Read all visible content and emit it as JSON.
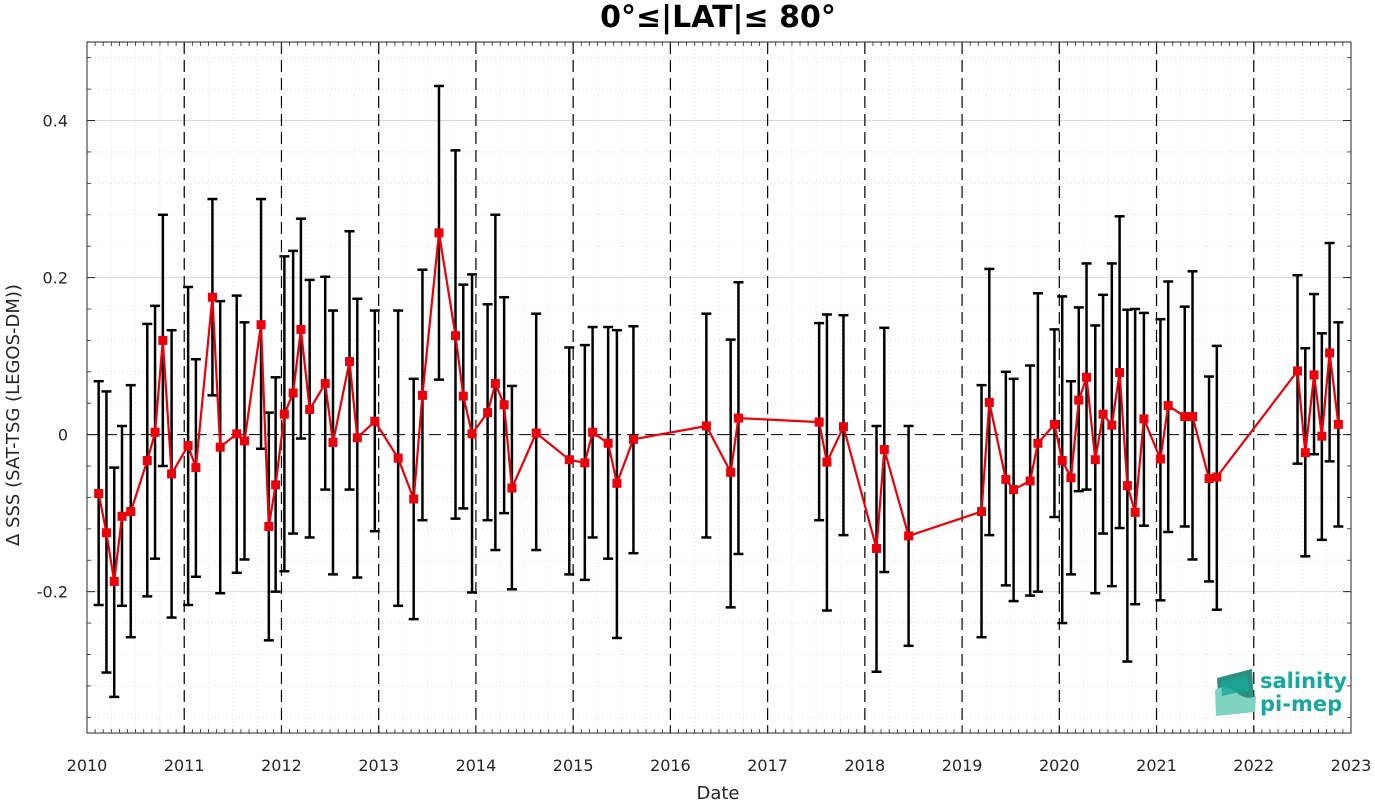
{
  "chart_data": {
    "type": "line",
    "title": "0°≤|LAT|≤ 80°",
    "xlabel": "Date",
    "ylabel": "Δ SSS (SAT-TSG (LEGOS-DM))",
    "xlim": [
      2010,
      2023
    ],
    "ylim": [
      -0.38,
      0.5
    ],
    "xticks": [
      "2010",
      "2011",
      "2012",
      "2013",
      "2014",
      "2015",
      "2016",
      "2017",
      "2018",
      "2019",
      "2020",
      "2021",
      "2022",
      "2023"
    ],
    "yticks": [
      "-0.2",
      "0",
      "0.2",
      "0.4"
    ],
    "grid": true,
    "year_boundaries": "dashed vertical lines",
    "zero_line": "dashed horizontal line",
    "colors": {
      "line": "#e8000b",
      "error_bars": "#000000",
      "grid": "#d9d9d9"
    },
    "series": [
      {
        "x": [
          2010.12,
          2010.2,
          2010.28,
          2010.36,
          2010.45,
          2010.62,
          2010.7,
          2010.78,
          2010.87,
          2011.04,
          2011.12,
          2011.29,
          2011.37,
          2011.54,
          2011.62,
          2011.79,
          2011.87,
          2011.94,
          2012.03,
          2012.12,
          2012.2,
          2012.29,
          2012.45,
          2012.53,
          2012.7,
          2012.78,
          2012.96,
          2013.2,
          2013.36,
          2013.45,
          2013.62,
          2013.79,
          2013.87,
          2013.96,
          2014.12,
          2014.2,
          2014.29,
          2014.37,
          2014.62,
          2014.96,
          2015.12,
          2015.2,
          2015.36,
          2015.45,
          2015.62,
          2016.37,
          2016.62,
          2016.7,
          2017.53,
          2017.61,
          2017.78,
          2018.12,
          2018.2,
          2018.45,
          2019.2,
          2019.28,
          2019.45,
          2019.53,
          2019.7,
          2019.78,
          2019.95,
          2020.03,
          2020.12,
          2020.2,
          2020.28,
          2020.37,
          2020.45,
          2020.54,
          2020.62,
          2020.7,
          2020.78,
          2020.87,
          2021.04,
          2021.12,
          2021.29,
          2021.37,
          2021.54,
          2021.62,
          2022.45,
          2022.53,
          2022.62,
          2022.7,
          2022.78,
          2022.87
        ],
        "y": [
          -0.075,
          -0.125,
          -0.187,
          -0.104,
          -0.098,
          -0.033,
          0.003,
          0.12,
          -0.05,
          -0.014,
          -0.042,
          0.175,
          -0.016,
          0.001,
          -0.008,
          0.14,
          -0.117,
          -0.064,
          0.026,
          0.053,
          0.134,
          0.032,
          0.065,
          -0.01,
          0.093,
          -0.004,
          0.017,
          -0.03,
          -0.082,
          0.05,
          0.257,
          0.126,
          0.049,
          0.001,
          0.028,
          0.065,
          0.038,
          -0.068,
          0.002,
          -0.032,
          -0.036,
          0.003,
          -0.011,
          -0.062,
          -0.006,
          0.011,
          -0.048,
          0.021,
          0.016,
          -0.035,
          0.01,
          -0.145,
          -0.019,
          -0.129,
          -0.098,
          0.041,
          -0.057,
          -0.07,
          -0.059,
          -0.011,
          0.013,
          -0.033,
          -0.055,
          0.044,
          0.073,
          -0.032,
          0.026,
          0.012,
          0.079,
          -0.065,
          -0.099,
          0.02,
          -0.031,
          0.037,
          0.023,
          0.023,
          -0.056,
          -0.054,
          0.081,
          -0.023,
          0.076,
          -0.002,
          0.104,
          0.013
        ],
        "y_low": [
          -0.217,
          -0.303,
          -0.334,
          -0.218,
          -0.258,
          -0.206,
          -0.158,
          -0.04,
          -0.233,
          -0.217,
          -0.181,
          0.05,
          -0.202,
          -0.176,
          -0.159,
          -0.018,
          -0.262,
          -0.2,
          -0.174,
          -0.126,
          -0.005,
          -0.131,
          -0.07,
          -0.178,
          -0.07,
          -0.182,
          -0.123,
          -0.218,
          -0.235,
          -0.109,
          0.07,
          -0.107,
          -0.094,
          -0.201,
          -0.109,
          -0.147,
          -0.1,
          -0.197,
          -0.147,
          -0.178,
          -0.185,
          -0.131,
          -0.158,
          -0.259,
          -0.151,
          -0.131,
          -0.22,
          -0.152,
          -0.109,
          -0.224,
          -0.128,
          -0.302,
          -0.175,
          -0.269,
          -0.258,
          -0.128,
          -0.192,
          -0.212,
          -0.205,
          -0.2,
          -0.105,
          -0.24,
          -0.178,
          -0.072,
          -0.07,
          -0.202,
          -0.126,
          -0.193,
          -0.119,
          -0.289,
          -0.216,
          -0.116,
          -0.211,
          -0.124,
          -0.117,
          -0.159,
          -0.187,
          -0.223,
          -0.037,
          -0.155,
          -0.025,
          -0.134,
          -0.034,
          -0.117
        ],
        "y_high": [
          0.068,
          0.055,
          -0.042,
          0.011,
          0.063,
          0.141,
          0.164,
          0.28,
          0.133,
          0.188,
          0.096,
          0.3,
          0.17,
          0.177,
          0.143,
          0.3,
          0.028,
          0.073,
          0.227,
          0.234,
          0.275,
          0.197,
          0.201,
          0.158,
          0.259,
          0.173,
          0.158,
          0.158,
          0.071,
          0.21,
          0.444,
          0.362,
          0.191,
          0.204,
          0.166,
          0.28,
          0.175,
          0.062,
          0.154,
          0.111,
          0.114,
          0.137,
          0.137,
          0.133,
          0.138,
          0.154,
          0.121,
          0.194,
          0.142,
          0.153,
          0.152,
          0.011,
          0.136,
          0.011,
          0.063,
          0.211,
          0.08,
          0.071,
          0.088,
          0.18,
          0.134,
          0.176,
          0.068,
          0.162,
          0.218,
          0.139,
          0.178,
          0.218,
          0.278,
          0.159,
          0.16,
          0.155,
          0.147,
          0.195,
          0.163,
          0.208,
          0.074,
          0.113,
          0.203,
          0.11,
          0.179,
          0.129,
          0.244,
          0.143
        ]
      }
    ]
  },
  "logo": {
    "line1": "salinity",
    "line2": "pi-mep",
    "colors": [
      "#17a79b",
      "#2a8f7e",
      "#7fd3c0"
    ]
  }
}
